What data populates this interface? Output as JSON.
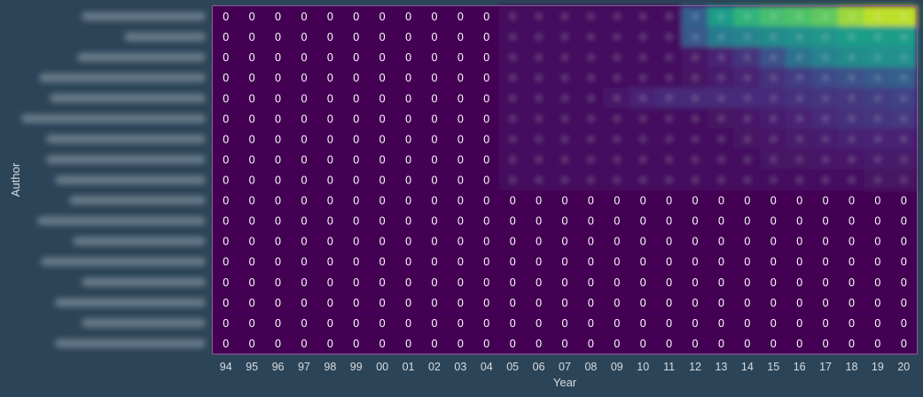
{
  "chart_data": {
    "type": "heatmap",
    "title": "",
    "xlabel": "Year",
    "ylabel": "Author",
    "x": [
      "94",
      "95",
      "96",
      "97",
      "98",
      "99",
      "00",
      "01",
      "02",
      "03",
      "04",
      "05",
      "06",
      "07",
      "08",
      "09",
      "10",
      "11",
      "12",
      "13",
      "14",
      "15",
      "16",
      "17",
      "18",
      "19",
      "20"
    ],
    "y": [
      "",
      "",
      "",
      "",
      "",
      "",
      "",
      "",
      "",
      "",
      "",
      "",
      "",
      "",
      "",
      "",
      ""
    ],
    "colormap": "viridis",
    "colors": {
      "background": "#2c4457",
      "cell_zero": "#440154",
      "text": "#ffffff",
      "axis_text": "#d6dde3",
      "border": "#8e5a9e",
      "viridis_stops": [
        "#440154",
        "#482878",
        "#3e4a89",
        "#31688e",
        "#26828e",
        "#1f9e89",
        "#35b779",
        "#6ece58",
        "#b5de2b",
        "#fde725"
      ]
    },
    "labeled_block": {
      "rows_0_8_cols": [
        "94",
        "95",
        "96",
        "97",
        "98",
        "99",
        "00",
        "01",
        "02",
        "03",
        "04"
      ],
      "rows_9_16_cols": "all"
    },
    "values": [
      [
        0,
        0,
        0,
        0,
        0,
        0,
        0,
        0,
        0,
        0,
        0,
        0.03,
        0.03,
        0.03,
        0.03,
        0.03,
        0.03,
        0.04,
        0.3,
        0.55,
        0.65,
        0.7,
        0.72,
        0.75,
        0.85,
        0.9,
        0.9
      ],
      [
        0,
        0,
        0,
        0,
        0,
        0,
        0,
        0,
        0,
        0,
        0,
        0.03,
        0.03,
        0.03,
        0.03,
        0.03,
        0.03,
        0.04,
        0.28,
        0.42,
        0.45,
        0.48,
        0.5,
        0.52,
        0.55,
        0.55,
        0.55
      ],
      [
        0,
        0,
        0,
        0,
        0,
        0,
        0,
        0,
        0,
        0,
        0,
        0.03,
        0.03,
        0.03,
        0.03,
        0.03,
        0.03,
        0.04,
        0.06,
        0.1,
        0.15,
        0.25,
        0.38,
        0.45,
        0.48,
        0.5,
        0.5
      ],
      [
        0,
        0,
        0,
        0,
        0,
        0,
        0,
        0,
        0,
        0,
        0,
        0.03,
        0.03,
        0.03,
        0.03,
        0.03,
        0.03,
        0.03,
        0.05,
        0.08,
        0.1,
        0.14,
        0.18,
        0.22,
        0.25,
        0.28,
        0.3
      ],
      [
        0,
        0,
        0,
        0,
        0,
        0,
        0,
        0,
        0,
        0,
        0,
        0.03,
        0.03,
        0.03,
        0.04,
        0.06,
        0.1,
        0.12,
        0.12,
        0.12,
        0.12,
        0.12,
        0.14,
        0.15,
        0.16,
        0.18,
        0.2
      ],
      [
        0,
        0,
        0,
        0,
        0,
        0,
        0,
        0,
        0,
        0,
        0,
        0.03,
        0.03,
        0.03,
        0.03,
        0.03,
        0.03,
        0.03,
        0.04,
        0.05,
        0.06,
        0.08,
        0.1,
        0.12,
        0.14,
        0.15,
        0.16
      ],
      [
        0,
        0,
        0,
        0,
        0,
        0,
        0,
        0,
        0,
        0,
        0,
        0.03,
        0.03,
        0.03,
        0.03,
        0.03,
        0.03,
        0.03,
        0.03,
        0.04,
        0.05,
        0.06,
        0.07,
        0.08,
        0.09,
        0.1,
        0.1
      ],
      [
        0,
        0,
        0,
        0,
        0,
        0,
        0,
        0,
        0,
        0,
        0,
        0.03,
        0.03,
        0.03,
        0.03,
        0.03,
        0.03,
        0.03,
        0.03,
        0.03,
        0.04,
        0.05,
        0.05,
        0.06,
        0.06,
        0.07,
        0.07
      ],
      [
        0,
        0,
        0,
        0,
        0,
        0,
        0,
        0,
        0,
        0,
        0,
        0.03,
        0.03,
        0.03,
        0.03,
        0.03,
        0.03,
        0.03,
        0.03,
        0.03,
        0.03,
        0.03,
        0.04,
        0.04,
        0.04,
        0.05,
        0.05
      ],
      [
        0,
        0,
        0,
        0,
        0,
        0,
        0,
        0,
        0,
        0,
        0,
        0,
        0,
        0,
        0,
        0,
        0,
        0,
        0,
        0,
        0,
        0,
        0,
        0,
        0,
        0,
        0
      ],
      [
        0,
        0,
        0,
        0,
        0,
        0,
        0,
        0,
        0,
        0,
        0,
        0,
        0,
        0,
        0,
        0,
        0,
        0,
        0,
        0,
        0,
        0,
        0,
        0,
        0,
        0,
        0
      ],
      [
        0,
        0,
        0,
        0,
        0,
        0,
        0,
        0,
        0,
        0,
        0,
        0,
        0,
        0,
        0,
        0,
        0,
        0,
        0,
        0,
        0,
        0,
        0,
        0,
        0,
        0,
        0
      ],
      [
        0,
        0,
        0,
        0,
        0,
        0,
        0,
        0,
        0,
        0,
        0,
        0,
        0,
        0,
        0,
        0,
        0,
        0,
        0,
        0,
        0,
        0,
        0,
        0,
        0,
        0,
        0
      ],
      [
        0,
        0,
        0,
        0,
        0,
        0,
        0,
        0,
        0,
        0,
        0,
        0,
        0,
        0,
        0,
        0,
        0,
        0,
        0,
        0,
        0,
        0,
        0,
        0,
        0,
        0,
        0
      ],
      [
        0,
        0,
        0,
        0,
        0,
        0,
        0,
        0,
        0,
        0,
        0,
        0,
        0,
        0,
        0,
        0,
        0,
        0,
        0,
        0,
        0,
        0,
        0,
        0,
        0,
        0,
        0
      ],
      [
        0,
        0,
        0,
        0,
        0,
        0,
        0,
        0,
        0,
        0,
        0,
        0,
        0,
        0,
        0,
        0,
        0,
        0,
        0,
        0,
        0,
        0,
        0,
        0,
        0,
        0,
        0
      ],
      [
        0,
        0,
        0,
        0,
        0,
        0,
        0,
        0,
        0,
        0,
        0,
        0,
        0,
        0,
        0,
        0,
        0,
        0,
        0,
        0,
        0,
        0,
        0,
        0,
        0,
        0,
        0
      ]
    ],
    "cell_labels": [
      [
        "0",
        "0",
        "0",
        "0",
        "0",
        "0",
        "0",
        "0",
        "0",
        "0",
        "0",
        "",
        "",
        "",
        "",
        "",
        "",
        "",
        "",
        "",
        "",
        "",
        "",
        "",
        "",
        "",
        ""
      ],
      [
        "0",
        "0",
        "0",
        "0",
        "0",
        "0",
        "0",
        "0",
        "0",
        "0",
        "0",
        "",
        "",
        "",
        "",
        "",
        "",
        "",
        "",
        "",
        "",
        "",
        "",
        "",
        "",
        "",
        ""
      ],
      [
        "0",
        "0",
        "0",
        "0",
        "0",
        "0",
        "0",
        "0",
        "0",
        "0",
        "0",
        "",
        "",
        "",
        "",
        "",
        "",
        "",
        "",
        "",
        "",
        "",
        "",
        "",
        "",
        "",
        ""
      ],
      [
        "0",
        "0",
        "0",
        "0",
        "0",
        "0",
        "0",
        "0",
        "0",
        "0",
        "0",
        "",
        "",
        "",
        "",
        "",
        "",
        "",
        "",
        "",
        "",
        "",
        "",
        "",
        "",
        "",
        ""
      ],
      [
        "0",
        "0",
        "0",
        "0",
        "0",
        "0",
        "0",
        "0",
        "0",
        "0",
        "0",
        "",
        "",
        "",
        "",
        "",
        "",
        "",
        "",
        "",
        "",
        "",
        "",
        "",
        "",
        "",
        ""
      ],
      [
        "0",
        "0",
        "0",
        "0",
        "0",
        "0",
        "0",
        "0",
        "0",
        "0",
        "0",
        "",
        "",
        "",
        "",
        "",
        "",
        "",
        "",
        "",
        "",
        "",
        "",
        "",
        "",
        "",
        ""
      ],
      [
        "0",
        "0",
        "0",
        "0",
        "0",
        "0",
        "0",
        "0",
        "0",
        "0",
        "0",
        "",
        "",
        "",
        "",
        "",
        "",
        "",
        "",
        "",
        "",
        "",
        "",
        "",
        "",
        "",
        ""
      ],
      [
        "0",
        "0",
        "0",
        "0",
        "0",
        "0",
        "0",
        "0",
        "0",
        "0",
        "0",
        "",
        "",
        "",
        "",
        "",
        "",
        "",
        "",
        "",
        "",
        "",
        "",
        "",
        "",
        "",
        ""
      ],
      [
        "0",
        "0",
        "0",
        "0",
        "0",
        "0",
        "0",
        "0",
        "0",
        "0",
        "0",
        "",
        "",
        "",
        "",
        "",
        "",
        "",
        "",
        "",
        "",
        "",
        "",
        "",
        "",
        "",
        ""
      ],
      [
        "0",
        "0",
        "0",
        "0",
        "0",
        "0",
        "0",
        "0",
        "0",
        "0",
        "0",
        "0",
        "0",
        "0",
        "0",
        "0",
        "0",
        "0",
        "0",
        "0",
        "0",
        "0",
        "0",
        "0",
        "0",
        "0",
        "0"
      ],
      [
        "0",
        "0",
        "0",
        "0",
        "0",
        "0",
        "0",
        "0",
        "0",
        "0",
        "0",
        "0",
        "0",
        "0",
        "0",
        "0",
        "0",
        "0",
        "0",
        "0",
        "0",
        "0",
        "0",
        "0",
        "0",
        "0",
        "0"
      ],
      [
        "0",
        "0",
        "0",
        "0",
        "0",
        "0",
        "0",
        "0",
        "0",
        "0",
        "0",
        "0",
        "0",
        "0",
        "0",
        "0",
        "0",
        "0",
        "0",
        "0",
        "0",
        "0",
        "0",
        "0",
        "0",
        "0",
        "0"
      ],
      [
        "0",
        "0",
        "0",
        "0",
        "0",
        "0",
        "0",
        "0",
        "0",
        "0",
        "0",
        "0",
        "0",
        "0",
        "0",
        "0",
        "0",
        "0",
        "0",
        "0",
        "0",
        "0",
        "0",
        "0",
        "0",
        "0",
        "0"
      ],
      [
        "0",
        "0",
        "0",
        "0",
        "0",
        "0",
        "0",
        "0",
        "0",
        "0",
        "0",
        "0",
        "0",
        "0",
        "0",
        "0",
        "0",
        "0",
        "0",
        "0",
        "0",
        "0",
        "0",
        "0",
        "0",
        "0",
        "0"
      ],
      [
        "0",
        "0",
        "0",
        "0",
        "0",
        "0",
        "0",
        "0",
        "0",
        "0",
        "0",
        "0",
        "0",
        "0",
        "0",
        "0",
        "0",
        "0",
        "0",
        "0",
        "0",
        "0",
        "0",
        "0",
        "0",
        "0",
        "0"
      ],
      [
        "0",
        "0",
        "0",
        "0",
        "0",
        "0",
        "0",
        "0",
        "0",
        "0",
        "0",
        "0",
        "0",
        "0",
        "0",
        "0",
        "0",
        "0",
        "0",
        "0",
        "0",
        "0",
        "0",
        "0",
        "0",
        "0",
        "0"
      ],
      [
        "0",
        "0",
        "0",
        "0",
        "0",
        "0",
        "0",
        "0",
        "0",
        "0",
        "0",
        "0",
        "0",
        "0",
        "0",
        "0",
        "0",
        "0",
        "0",
        "0",
        "0",
        "0",
        "0",
        "0",
        "0",
        "0",
        "0"
      ]
    ],
    "blurred_regions": [
      "y-axis author names",
      "rows 0-8 from 05 to 20"
    ],
    "grid": false,
    "legend": "none"
  }
}
